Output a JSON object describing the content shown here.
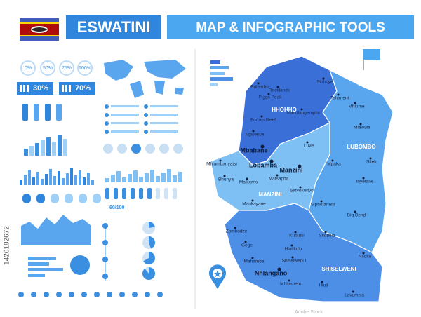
{
  "header": {
    "country": "ESWATINI",
    "title": "MAP & INFOGRAPHIC TOOLS"
  },
  "infographic": {
    "percent_circles": [
      "0%",
      "50%",
      "75%",
      "100%"
    ],
    "gender_stats": [
      "30%",
      "70%"
    ],
    "score": "60/100"
  },
  "map": {
    "regions": [
      "HHOHHO",
      "LUBOMBO",
      "MANZINI",
      "SHISELWENI"
    ],
    "capitals": [
      "Mbabane",
      "Lobamba",
      "Manzini",
      "Nhlangano"
    ],
    "cities": [
      "Bulembu",
      "Rocklands",
      "Sihhoye",
      "Piggs Peak",
      "Tshaneni",
      "Mhlume",
      "Mandlangempisi",
      "Forbes Reef",
      "Mlawula",
      "Ngwenya",
      "Luve",
      "Mhlambanyatsi",
      "Mpaka",
      "Siteki",
      "Bhunya",
      "Malkerns",
      "Matsapha",
      "Sidvokodvo",
      "Inyetane",
      "Mankayane",
      "Siphofaneni",
      "Big Bend",
      "Zombodze",
      "Kubutsi",
      "Sitobela",
      "Gege",
      "Hlatikulu",
      "Nsoko",
      "Mahamba",
      "Shiselweni I",
      "Mhlosheni",
      "Hluti",
      "Lavumisa"
    ]
  },
  "watermark": {
    "brand": "Adobe Stock",
    "id": "1420182672"
  }
}
